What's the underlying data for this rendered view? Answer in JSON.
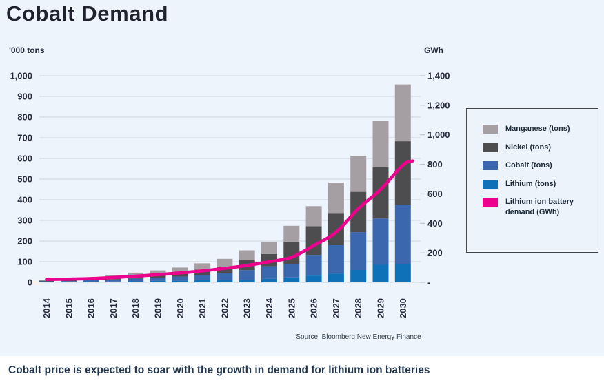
{
  "page": {
    "background_color": "#eef4fb",
    "footer_caption": "Cobalt price is expected to soar with the growth in demand for lithium ion batteries"
  },
  "header": {
    "title": "Cobalt Demand"
  },
  "chart": {
    "left_axis_title": "'000 tons",
    "right_axis_title": "GWh",
    "source": "Source: Bloomberg New Energy Finance"
  },
  "legend": {
    "items": [
      {
        "label": "Manganese (tons)",
        "color": "#a59fa4"
      },
      {
        "label": "Nickel (tons)",
        "color": "#4d4d50"
      },
      {
        "label": "Cobalt (tons)",
        "color": "#3a67ae"
      },
      {
        "label": "Lithium (tons)",
        "color": "#0f72b9"
      },
      {
        "label": "Lithium ion battery demand (GWh)",
        "color": "#ec008c"
      }
    ]
  },
  "chart_data": {
    "type": "bar",
    "stacked": true,
    "title": "Cobalt Demand",
    "grid": true,
    "legend_position": "right",
    "categories": [
      "2014",
      "2015",
      "2016",
      "2017",
      "2018",
      "2019",
      "2020",
      "2021",
      "2022",
      "2023",
      "2024",
      "2025",
      "2026",
      "2027",
      "2028",
      "2029",
      "2030"
    ],
    "series": [
      {
        "name": "Lithium (tons)",
        "axis": "left",
        "color": "#0f72b9",
        "values": [
          2,
          2,
          3,
          4,
          5,
          7,
          8,
          10,
          12,
          12,
          17,
          24,
          33,
          43,
          60,
          85,
          90
        ]
      },
      {
        "name": "Cobalt (tons)",
        "axis": "left",
        "color": "#3a67ae",
        "values": [
          3,
          4,
          7,
          10,
          13,
          16,
          20,
          26,
          32,
          47,
          61,
          65,
          100,
          137,
          183,
          224,
          286
        ]
      },
      {
        "name": "Nickel (tons)",
        "axis": "left",
        "color": "#4d4d50",
        "values": [
          3,
          4,
          7,
          10,
          13,
          16,
          20,
          26,
          32,
          50,
          59,
          108,
          139,
          155,
          195,
          249,
          307
        ]
      },
      {
        "name": "Manganese (tons)",
        "axis": "left",
        "color": "#a59fa4",
        "values": [
          3,
          5,
          8,
          12,
          16,
          19,
          24,
          30,
          38,
          46,
          57,
          77,
          97,
          148,
          175,
          222,
          275
        ]
      }
    ],
    "line_series": {
      "name": "Lithium ion battery demand (GWh)",
      "axis": "right",
      "color": "#ec008c",
      "values": [
        20,
        22,
        26,
        33,
        42,
        52,
        64,
        78,
        95,
        115,
        140,
        170,
        250,
        340,
        500,
        630,
        795
      ]
    },
    "left_axis": {
      "label": "'000 tons",
      "min": 0,
      "max": 1000,
      "step": 100,
      "tick_labels": [
        "0",
        "100",
        "200",
        "300",
        "400",
        "500",
        "600",
        "700",
        "800",
        "900",
        "1,000"
      ]
    },
    "right_axis": {
      "label": "GWh",
      "min": 0,
      "max": 1400,
      "step": 200,
      "tick_labels": [
        "-",
        "200",
        "400",
        "600",
        "800",
        "1,000",
        "1,200",
        "1,400"
      ]
    }
  }
}
